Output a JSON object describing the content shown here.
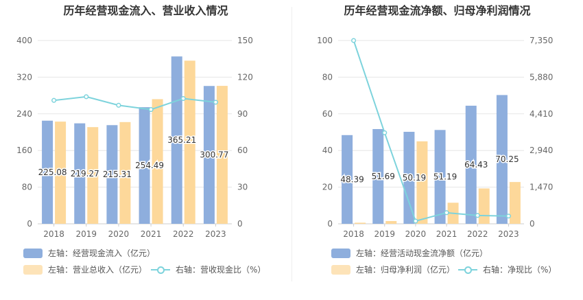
{
  "panels": [
    {
      "title": "历年经营现金流入、营业收入情况",
      "legend": [
        "左轴：经营现金流入（亿元）",
        "左轴：营业总收入（亿元）",
        "右轴：营收现金比（%）"
      ]
    },
    {
      "title": "历年经营现金流净额、归母净利润情况",
      "legend": [
        "左轴：经营活动现金流净额（亿元）",
        "左轴：归母净利润（亿元）",
        "右轴：净现比（%）"
      ]
    }
  ],
  "chart_data": [
    {
      "type": "bar",
      "categories": [
        "2018",
        "2019",
        "2020",
        "2021",
        "2022",
        "2023"
      ],
      "title": "历年经营现金流入、营业收入情况",
      "ylim": [
        0,
        400
      ],
      "y_ticks": [
        "0",
        "80",
        "160",
        "240",
        "320",
        "400"
      ],
      "y2lim": [
        0,
        150
      ],
      "y2_ticks": [
        "0",
        "30",
        "60",
        "90",
        "120",
        "150"
      ],
      "grid": true,
      "legend_position": "bottom",
      "series": [
        {
          "name": "左轴：经营现金流入（亿元）",
          "type": "bar",
          "axis": "left",
          "color": "#8eaedd",
          "values": [
            225.08,
            219.27,
            215.31,
            254.49,
            365.21,
            300.77
          ],
          "labels": [
            "225.08",
            "219.27",
            "215.31",
            "254.49",
            "365.21",
            "300.77"
          ]
        },
        {
          "name": "左轴：营业总收入（亿元）",
          "type": "bar",
          "axis": "left",
          "color": "#fdd89a",
          "values": [
            223,
            211,
            222,
            272,
            356,
            301
          ]
        },
        {
          "name": "右轴：营收现金比（%）",
          "type": "line",
          "axis": "right",
          "color": "#7dd3dc",
          "values": [
            101,
            104,
            97,
            93.5,
            102.5,
            99.5
          ]
        }
      ]
    },
    {
      "type": "bar",
      "categories": [
        "2018",
        "2019",
        "2020",
        "2021",
        "2022",
        "2023"
      ],
      "title": "历年经营现金流净额、归母净利润情况",
      "ylim": [
        0,
        100
      ],
      "y_ticks": [
        "0",
        "20",
        "40",
        "60",
        "80",
        "100"
      ],
      "y2lim": [
        0,
        7350
      ],
      "y2_ticks": [
        "0",
        "1,470",
        "2,940",
        "4,410",
        "5,880",
        "7,350"
      ],
      "grid": true,
      "legend_position": "bottom",
      "series": [
        {
          "name": "左轴：经营活动现金流净额（亿元）",
          "type": "bar",
          "axis": "left",
          "color": "#8eaedd",
          "values": [
            48.39,
            51.69,
            50.19,
            51.19,
            64.43,
            70.25
          ],
          "labels": [
            "48.39",
            "51.69",
            "50.19",
            "51.19",
            "64.43",
            "70.25"
          ]
        },
        {
          "name": "左轴：归母净利润（亿元）",
          "type": "bar",
          "axis": "left",
          "color": "#fdd89a",
          "values": [
            0.6,
            1.5,
            45,
            11.5,
            19.3,
            22.8
          ]
        },
        {
          "name": "右轴：净现比（%）",
          "type": "line",
          "axis": "right",
          "color": "#7dd3dc",
          "values": [
            7350,
            3650,
            110,
            445,
            335,
            310
          ]
        }
      ]
    }
  ]
}
